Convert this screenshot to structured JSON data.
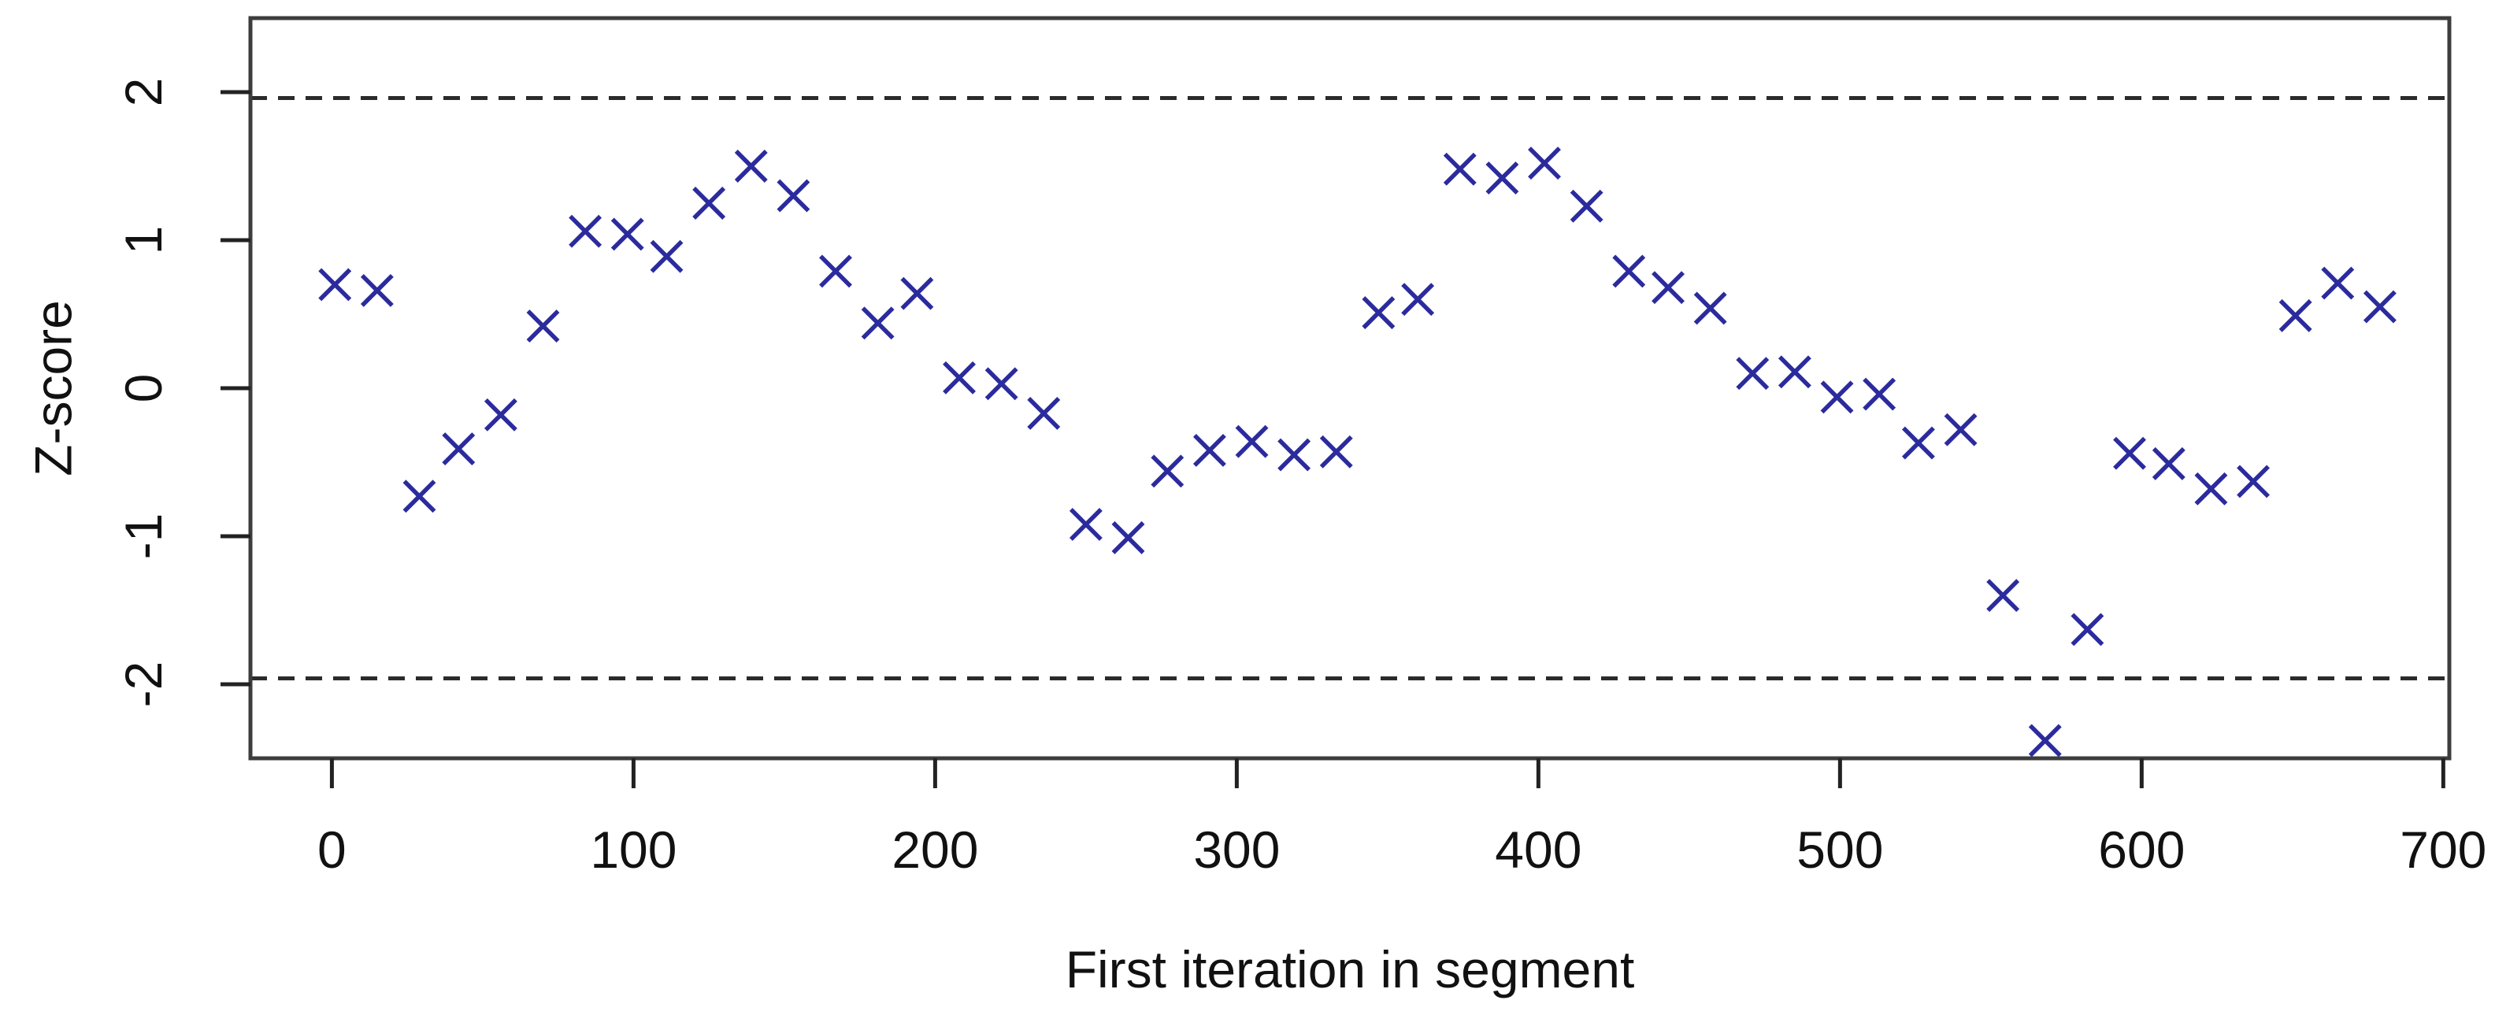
{
  "figure": {
    "background_color": "#ffffff",
    "axis_color": "#3d3d3d",
    "tick_color": "#222222",
    "text_color": "#111111",
    "marker_color": "#2b2b9e",
    "threshold_color": "#2b2b2b"
  },
  "chart_data": {
    "type": "scatter",
    "title": "",
    "xlabel": "First iteration in segment",
    "ylabel": "Z-score",
    "marker": "x-cross",
    "grid": false,
    "legend": null,
    "xlim": [
      -27,
      702
    ],
    "ylim": [
      -2.5,
      2.5
    ],
    "x_ticks": [
      0,
      100,
      200,
      300,
      400,
      500,
      600,
      700
    ],
    "y_ticks": [
      -2,
      -1,
      0,
      1,
      2
    ],
    "thresholds": [
      1.96,
      -1.96
    ],
    "x": [
      1,
      15,
      29,
      42,
      56,
      70,
      84,
      98,
      111,
      125,
      139,
      153,
      167,
      181,
      194,
      208,
      222,
      236,
      250,
      264,
      277,
      291,
      305,
      319,
      333,
      347,
      360,
      374,
      388,
      402,
      416,
      430,
      443,
      457,
      471,
      485,
      499,
      513,
      526,
      540,
      554,
      568,
      582,
      596,
      609,
      623,
      637,
      651,
      665,
      679
    ],
    "y": [
      0.7,
      0.66,
      -0.73,
      -0.41,
      -0.18,
      0.42,
      1.06,
      1.04,
      0.89,
      1.25,
      1.5,
      1.3,
      0.79,
      0.44,
      0.64,
      0.07,
      0.03,
      -0.17,
      -0.92,
      -1.01,
      -0.56,
      -0.42,
      -0.36,
      -0.45,
      -0.43,
      0.51,
      0.6,
      1.48,
      1.42,
      1.52,
      1.23,
      0.79,
      0.68,
      0.54,
      0.1,
      0.11,
      -0.06,
      -0.04,
      -0.37,
      -0.28,
      -1.4,
      -2.38,
      -1.63,
      -0.44,
      -0.51,
      -0.68,
      -0.63,
      0.49,
      0.71,
      0.55
    ]
  }
}
